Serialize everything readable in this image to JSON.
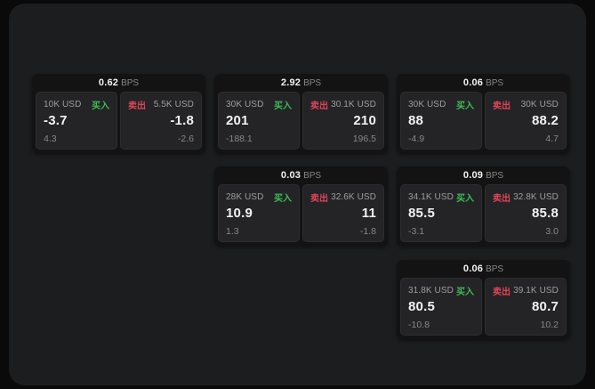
{
  "theme": {
    "outer_bg": "#0a0a0a",
    "panel_bg": "#1c1d1e",
    "card_bg": "#131314",
    "tile_bg": "#242427",
    "text_primary": "#f2f2f2",
    "text_muted": "#9d9d9d",
    "text_dim": "#878787",
    "buy_green": "#3dbd53",
    "sell_red": "#de4557"
  },
  "labels": {
    "bps_unit": "BPS",
    "buy": "买入",
    "sell": "卖出"
  },
  "cards": [
    {
      "bps": "0.62",
      "buy": {
        "size": "10K USD",
        "price": "-3.7",
        "delta": "4.3"
      },
      "sell": {
        "size": "5.5K USD",
        "price": "-1.8",
        "delta": "-2.6"
      }
    },
    {
      "bps": "2.92",
      "buy": {
        "size": "30K USD",
        "price": "201",
        "delta": "-188.1"
      },
      "sell": {
        "size": "30.1K USD",
        "price": "210",
        "delta": "196.5"
      }
    },
    {
      "bps": "0.06",
      "buy": {
        "size": "30K USD",
        "price": "88",
        "delta": "-4.9"
      },
      "sell": {
        "size": "30K USD",
        "price": "88.2",
        "delta": "4.7"
      }
    },
    {
      "bps": "0.03",
      "buy": {
        "size": "28K USD",
        "price": "10.9",
        "delta": "1.3"
      },
      "sell": {
        "size": "32.6K USD",
        "price": "11",
        "delta": "-1.8"
      }
    },
    {
      "bps": "0.09",
      "buy": {
        "size": "34.1K USD",
        "price": "85.5",
        "delta": "-3.1"
      },
      "sell": {
        "size": "32.8K USD",
        "price": "85.8",
        "delta": "3.0"
      }
    },
    {
      "bps": "0.06",
      "buy": {
        "size": "31.8K USD",
        "price": "80.5",
        "delta": "-10.8"
      },
      "sell": {
        "size": "39.1K USD",
        "price": "80.7",
        "delta": "10.2"
      }
    }
  ]
}
